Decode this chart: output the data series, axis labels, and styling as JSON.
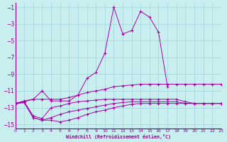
{
  "background_color": "#c8eef0",
  "grid_color": "#a8d8dc",
  "line_color": "#aa00aa",
  "marker": "+",
  "xlabel": "Windchill (Refroidissement éolien,°C)",
  "xlim": [
    0,
    23
  ],
  "ylim": [
    -15.5,
    -0.5
  ],
  "yticks": [
    -15,
    -13,
    -11,
    -9,
    -7,
    -5,
    -3,
    -1
  ],
  "xticks": [
    0,
    1,
    2,
    3,
    4,
    5,
    6,
    7,
    8,
    9,
    10,
    11,
    12,
    13,
    14,
    15,
    16,
    17,
    18,
    19,
    20,
    21,
    22,
    23
  ],
  "curves": [
    {
      "x": [
        0,
        1,
        2,
        3,
        4,
        5,
        6,
        7,
        8,
        9,
        10,
        11,
        12,
        13,
        14,
        15,
        16,
        17
      ],
      "y": [
        -12.5,
        -12.2,
        -12.0,
        -11.0,
        -12.2,
        -12.2,
        -12.2,
        -11.5,
        -9.5,
        -8.8,
        -6.5,
        -1.0,
        -4.2,
        -3.8,
        -1.5,
        -2.2,
        -4.0,
        -10.5
      ]
    },
    {
      "x": [
        0,
        1,
        2,
        3,
        4,
        5,
        6,
        7,
        8,
        9,
        10,
        11,
        12,
        13,
        14,
        15,
        16,
        17,
        18,
        19,
        20,
        21,
        22,
        23
      ],
      "y": [
        -12.5,
        -12.3,
        -12.0,
        -12.0,
        -12.0,
        -12.0,
        -11.8,
        -11.5,
        -11.2,
        -11.0,
        -10.8,
        -10.5,
        -10.4,
        -10.3,
        -10.2,
        -10.2,
        -10.2,
        -10.2,
        -10.2,
        -10.2,
        -10.2,
        -10.2,
        -10.2,
        -10.2
      ]
    },
    {
      "x": [
        0,
        1,
        2,
        3,
        4,
        5,
        6,
        7,
        8,
        9,
        10,
        11,
        12,
        13,
        14,
        15,
        16,
        17,
        18,
        19,
        20,
        21,
        22,
        23
      ],
      "y": [
        -12.5,
        -12.3,
        -14.0,
        -14.3,
        -13.0,
        -12.8,
        -12.5,
        -12.3,
        -12.2,
        -12.1,
        -12.0,
        -12.0,
        -12.0,
        -12.0,
        -12.0,
        -12.0,
        -12.0,
        -12.0,
        -12.0,
        -12.3,
        -12.5,
        -12.5,
        -12.5,
        -12.5
      ]
    },
    {
      "x": [
        0,
        1,
        2,
        3,
        4,
        5,
        6,
        7,
        8,
        9,
        10,
        11,
        12,
        13,
        14,
        15,
        16,
        17,
        18,
        19,
        20,
        21,
        22,
        23
      ],
      "y": [
        -12.5,
        -12.4,
        -14.2,
        -14.5,
        -14.2,
        -13.8,
        -13.5,
        -13.3,
        -13.1,
        -12.9,
        -12.7,
        -12.5,
        -12.4,
        -12.3,
        -12.3,
        -12.3,
        -12.3,
        -12.3,
        -12.3,
        -12.5,
        -12.5,
        -12.5,
        -12.5,
        -12.5
      ]
    },
    {
      "x": [
        0,
        1,
        2,
        3,
        4,
        5,
        6,
        7,
        8,
        9,
        10,
        11,
        12,
        13,
        14,
        15,
        16,
        17,
        18,
        19,
        20,
        21,
        22,
        23
      ],
      "y": [
        -12.5,
        -12.4,
        -14.2,
        -14.5,
        -14.5,
        -14.7,
        -14.5,
        -14.2,
        -13.8,
        -13.5,
        -13.3,
        -13.0,
        -12.8,
        -12.6,
        -12.5,
        -12.5,
        -12.5,
        -12.5,
        -12.5,
        -12.5,
        -12.5,
        -12.5,
        -12.5,
        -12.5
      ]
    }
  ]
}
